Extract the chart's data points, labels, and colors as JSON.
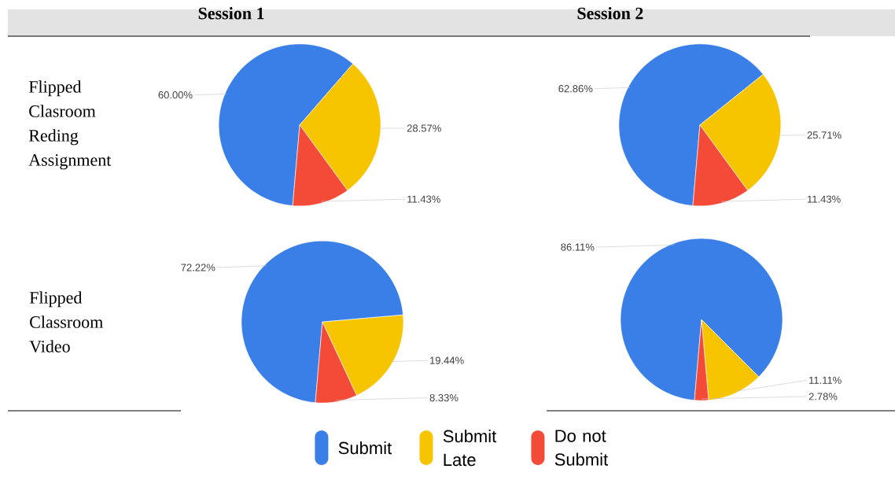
{
  "chart_data": [
    {
      "type": "pie",
      "title": "Session 1",
      "ylabel": "Flipped Clasroom Reding Assignment",
      "categories": [
        null,
        null,
        null
      ],
      "values": [
        60.0,
        28.57,
        11.43
      ],
      "value_labels": [
        "60.00%",
        "28.57%",
        "11.43%"
      ],
      "colors": [
        "#3a7fe8",
        "#f6c500",
        "#f44b39"
      ]
    },
    {
      "type": "pie",
      "title": "Session 2",
      "categories": [
        null,
        null,
        null
      ],
      "values": [
        62.86,
        25.71,
        11.43
      ],
      "value_labels": [
        "62.86%",
        "25.71%",
        "11.43%"
      ],
      "colors": [
        "#3a7fe8",
        "#f6c500",
        "#f44b39"
      ]
    },
    {
      "type": "pie",
      "ylabel": "Flipped Classroom Video",
      "categories": [
        "Submit",
        "Submit Late",
        "Do not Submit"
      ],
      "values": [
        72.22,
        19.44,
        8.33
      ],
      "value_labels": [
        "72.22%",
        "19.44%",
        "8.33%"
      ],
      "colors": [
        "#3a7fe8",
        "#f6c500",
        "#f44b39"
      ],
      "legend": "bottom"
    },
    {
      "type": "pie",
      "categories": [
        null,
        null,
        null
      ],
      "values": [
        86.11,
        11.11,
        2.78
      ],
      "value_labels": [
        "86.11%",
        "11.11%",
        "2.78%"
      ],
      "colors": [
        "#3a7fe8",
        "#f6c500",
        "#f44b39"
      ]
    }
  ]
}
